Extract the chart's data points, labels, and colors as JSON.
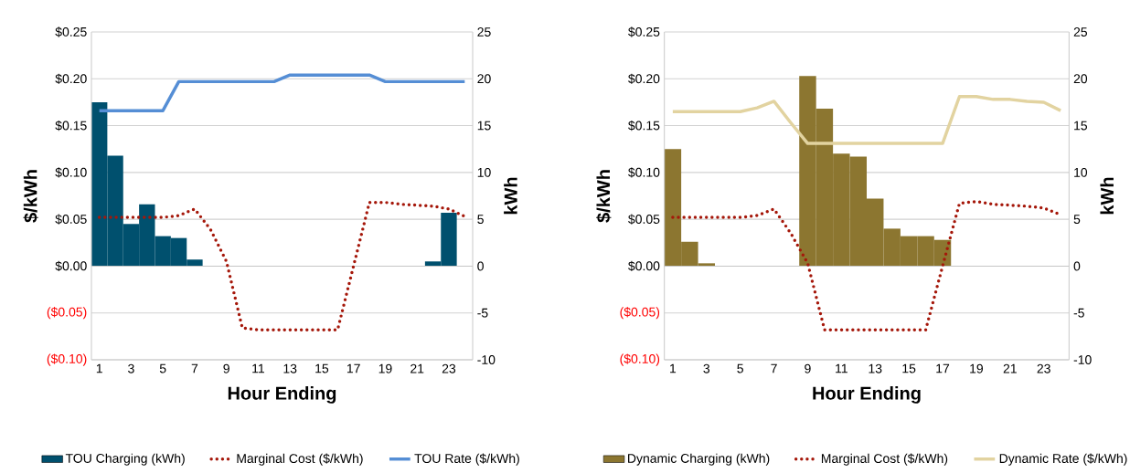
{
  "chart_data": [
    {
      "type": "bar",
      "xlabel": "Hour Ending",
      "ylabel": "$/kWh",
      "y2label": "kWh",
      "categories": [
        "1",
        null,
        "3",
        null,
        "5",
        null,
        "7",
        null,
        "9",
        null,
        "11",
        null,
        "13",
        null,
        "15",
        null,
        "17",
        null,
        "19",
        null,
        "21",
        null,
        "23",
        null
      ],
      "series": [
        {
          "name": "TOU Charging (kWh)",
          "axis": "y2",
          "color": "#00506e",
          "values": [
            17.5,
            11.8,
            4.5,
            6.6,
            3.2,
            3.0,
            0.7,
            0,
            0,
            0,
            0,
            0,
            0,
            0,
            0,
            0,
            0,
            0,
            0,
            0,
            0,
            0.5,
            5.7,
            0
          ]
        },
        {
          "name": "Marginal Cost ($/kWh)",
          "type": "line",
          "axis": "y",
          "line_style": "dotted",
          "color": "#a5170a",
          "values": [
            0.052,
            0.052,
            0.052,
            0.052,
            0.052,
            0.054,
            0.061,
            0.039,
            0.005,
            -0.066,
            -0.068,
            -0.068,
            -0.068,
            -0.068,
            -0.068,
            -0.068,
            0.0,
            0.068,
            0.068,
            0.066,
            0.065,
            0.064,
            0.061,
            0.053
          ]
        },
        {
          "name": "TOU Rate ($/kWh)",
          "type": "line",
          "axis": "y",
          "line_style": "solid",
          "color": "#558ed5",
          "values": [
            0.166,
            0.166,
            0.166,
            0.166,
            0.166,
            0.197,
            0.197,
            0.197,
            0.197,
            0.197,
            0.197,
            0.197,
            0.204,
            0.204,
            0.204,
            0.204,
            0.204,
            0.204,
            0.197,
            0.197,
            0.197,
            0.197,
            0.197,
            0.197
          ]
        }
      ],
      "ylim": [
        -0.1,
        0.25
      ],
      "yticks": [
        {
          "value": -0.1,
          "label": "($0.10)"
        },
        {
          "value": -0.05,
          "label": "($0.05)"
        },
        {
          "value": 0,
          "label": "$0.00"
        },
        {
          "value": 0.05,
          "label": "$0.05"
        },
        {
          "value": 0.1,
          "label": "$0.10"
        },
        {
          "value": 0.15,
          "label": "$0.15"
        },
        {
          "value": 0.2,
          "label": "$0.20"
        },
        {
          "value": 0.25,
          "label": "$0.25"
        }
      ],
      "y2lim": [
        -10,
        25
      ],
      "y2ticks": [
        -10,
        -5,
        0,
        5,
        10,
        15,
        20,
        25
      ],
      "grid": "y",
      "legend": "bottom"
    },
    {
      "type": "bar",
      "xlabel": "Hour Ending",
      "ylabel": "$/kWh",
      "y2label": "kWh",
      "categories": [
        "1",
        null,
        "3",
        null,
        "5",
        null,
        "7",
        null,
        "9",
        null,
        "11",
        null,
        "13",
        null,
        "15",
        null,
        "17",
        null,
        "19",
        null,
        "21",
        null,
        "23",
        null
      ],
      "series": [
        {
          "name": "Dynamic Charging (kWh)",
          "axis": "y2",
          "color": "#8c7630",
          "values": [
            12.5,
            2.6,
            0.3,
            0,
            0,
            0,
            0,
            0,
            20.3,
            16.8,
            12.0,
            11.7,
            7.2,
            4.0,
            3.2,
            3.2,
            2.8,
            0,
            0,
            0,
            0,
            0,
            0,
            0
          ]
        },
        {
          "name": "Marginal Cost ($/kWh)",
          "type": "line",
          "axis": "y",
          "line_style": "dotted",
          "color": "#a5170a",
          "values": [
            0.052,
            0.052,
            0.052,
            0.052,
            0.052,
            0.054,
            0.061,
            0.035,
            0.003,
            -0.068,
            -0.068,
            -0.068,
            -0.068,
            -0.068,
            -0.068,
            -0.068,
            0.0,
            0.067,
            0.069,
            0.066,
            0.065,
            0.064,
            0.062,
            0.055
          ]
        },
        {
          "name": "Dynamic Rate ($/kWh)",
          "type": "line",
          "axis": "y",
          "line_style": "solid",
          "color": "#e2d3a0",
          "values": [
            0.165,
            0.165,
            0.165,
            0.165,
            0.165,
            0.169,
            0.176,
            0.153,
            0.131,
            0.131,
            0.131,
            0.131,
            0.131,
            0.131,
            0.131,
            0.131,
            0.131,
            0.181,
            0.181,
            0.178,
            0.178,
            0.176,
            0.175,
            0.166
          ]
        }
      ],
      "ylim": [
        -0.1,
        0.25
      ],
      "yticks": [
        {
          "value": -0.1,
          "label": "($0.10)"
        },
        {
          "value": -0.05,
          "label": "($0.05)"
        },
        {
          "value": 0,
          "label": "$0.00"
        },
        {
          "value": 0.05,
          "label": "$0.05"
        },
        {
          "value": 0.1,
          "label": "$0.10"
        },
        {
          "value": 0.15,
          "label": "$0.15"
        },
        {
          "value": 0.2,
          "label": "$0.20"
        },
        {
          "value": 0.25,
          "label": "$0.25"
        }
      ],
      "y2lim": [
        -10,
        25
      ],
      "y2ticks": [
        -10,
        -5,
        0,
        5,
        10,
        15,
        20,
        25
      ],
      "grid": "y",
      "legend": "bottom"
    }
  ]
}
